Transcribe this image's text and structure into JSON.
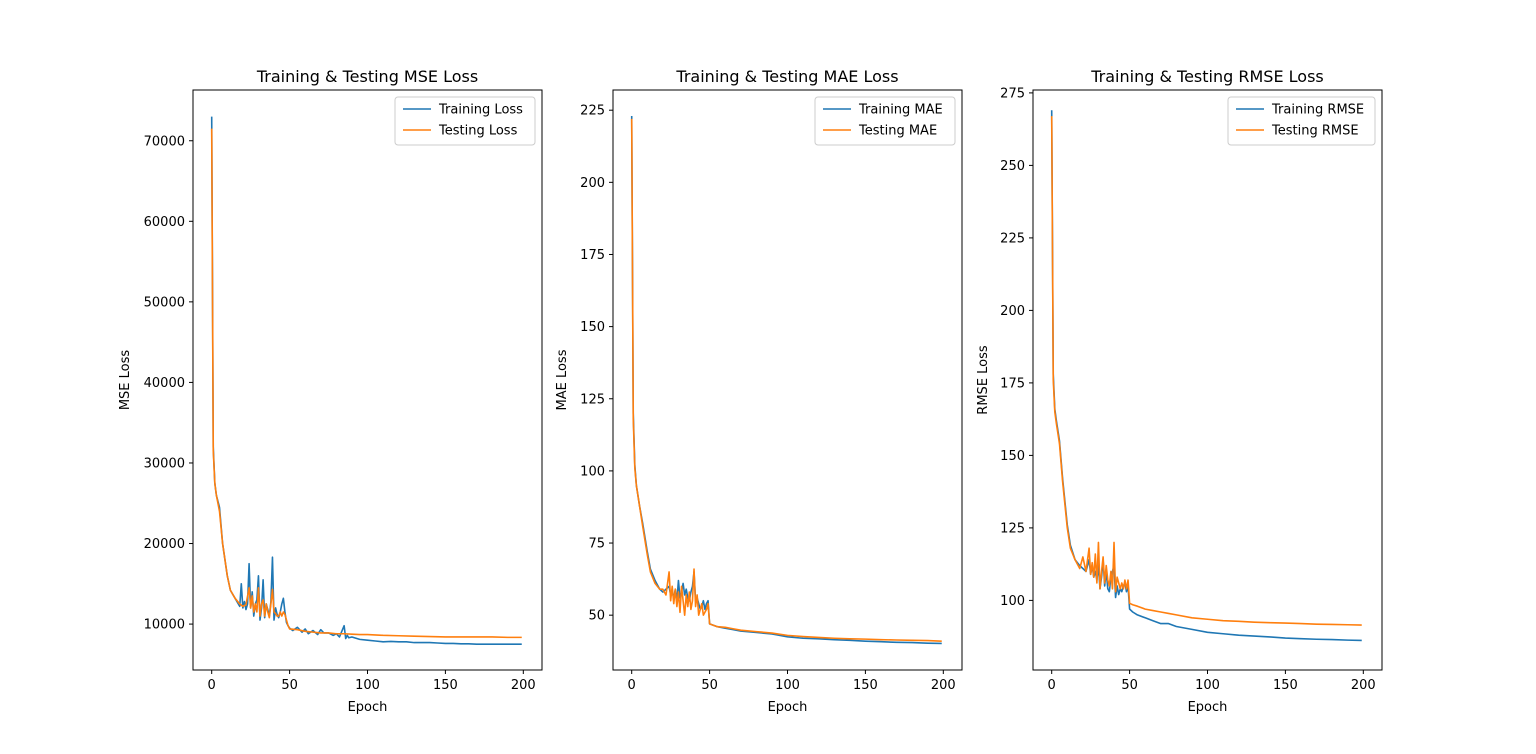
{
  "chart_data": [
    {
      "type": "line",
      "title": "Training & Testing MSE Loss",
      "xlabel": "Epoch",
      "ylabel": "MSE Loss",
      "xlim": [
        -12,
        212
      ],
      "ylim": [
        4300,
        76300
      ],
      "xticks": [
        0,
        50,
        100,
        150,
        200
      ],
      "yticks": [
        10000,
        20000,
        30000,
        40000,
        50000,
        60000,
        70000
      ],
      "legend": "top-right",
      "grid": false,
      "series": [
        {
          "name": "Training Loss",
          "color": "#1f77b4",
          "x": [
            0,
            1,
            2,
            3,
            5,
            7,
            10,
            12,
            15,
            18,
            19,
            20,
            21,
            22,
            23,
            24,
            25,
            26,
            27,
            28,
            29,
            30,
            31,
            32,
            33,
            34,
            35,
            36,
            37,
            38,
            39,
            40,
            41,
            42,
            43,
            44,
            45,
            46,
            47,
            48,
            49,
            50,
            52,
            55,
            58,
            60,
            62,
            65,
            68,
            70,
            72,
            75,
            78,
            80,
            82,
            85,
            86,
            87,
            88,
            90,
            95,
            100,
            105,
            110,
            115,
            120,
            125,
            130,
            135,
            140,
            145,
            150,
            155,
            160,
            165,
            170,
            175,
            180,
            185,
            190,
            195,
            199
          ],
          "y": [
            73000,
            32000,
            27500,
            26000,
            24500,
            20000,
            16000,
            14200,
            13200,
            12200,
            15000,
            12000,
            12800,
            11800,
            12500,
            17500,
            12000,
            14000,
            11000,
            12500,
            13000,
            16000,
            10500,
            12000,
            15500,
            10800,
            12500,
            11800,
            11000,
            12800,
            18300,
            10500,
            12000,
            11200,
            10800,
            11500,
            12500,
            13200,
            11500,
            10200,
            9800,
            9500,
            9200,
            9600,
            9000,
            9400,
            8800,
            9200,
            8700,
            9300,
            8900,
            8900,
            8600,
            8800,
            8400,
            9800,
            8200,
            8600,
            8300,
            8400,
            8100,
            8000,
            7900,
            7800,
            7850,
            7800,
            7800,
            7700,
            7700,
            7700,
            7650,
            7600,
            7600,
            7550,
            7550,
            7500,
            7500,
            7500,
            7500,
            7500,
            7500,
            7500
          ]
        },
        {
          "name": "Testing Loss",
          "color": "#ff7f0e",
          "x": [
            0,
            1,
            2,
            3,
            5,
            7,
            10,
            12,
            15,
            18,
            20,
            22,
            24,
            25,
            26,
            27,
            28,
            29,
            30,
            31,
            32,
            33,
            34,
            35,
            36,
            37,
            38,
            39,
            40,
            41,
            42,
            43,
            44,
            45,
            46,
            47,
            48,
            49,
            50,
            55,
            60,
            65,
            70,
            75,
            80,
            85,
            90,
            95,
            100,
            110,
            120,
            130,
            140,
            150,
            160,
            170,
            180,
            190,
            199
          ],
          "y": [
            71500,
            31500,
            27500,
            26000,
            24000,
            20000,
            16000,
            14200,
            13200,
            12500,
            12200,
            12400,
            14500,
            12000,
            13500,
            11500,
            12500,
            11500,
            14500,
            11000,
            12500,
            13000,
            11000,
            12500,
            11500,
            10800,
            12500,
            14300,
            11500,
            11300,
            11000,
            11000,
            11500,
            11000,
            11500,
            11200,
            10500,
            9800,
            9400,
            9300,
            9100,
            9000,
            8900,
            8900,
            8800,
            8800,
            8750,
            8700,
            8700,
            8600,
            8550,
            8500,
            8450,
            8400,
            8400,
            8400,
            8400,
            8350,
            8350
          ]
        }
      ]
    },
    {
      "type": "line",
      "title": "Training & Testing MAE Loss",
      "xlabel": "Epoch",
      "ylabel": "MAE Loss",
      "xlim": [
        -12,
        212
      ],
      "ylim": [
        31,
        232
      ],
      "xticks": [
        0,
        50,
        100,
        150,
        200
      ],
      "yticks": [
        50,
        75,
        100,
        125,
        150,
        175,
        200,
        225
      ],
      "legend": "top-right",
      "grid": false,
      "series": [
        {
          "name": "Training MAE",
          "color": "#1f77b4",
          "x": [
            0,
            1,
            2,
            3,
            5,
            7,
            10,
            12,
            15,
            18,
            20,
            22,
            24,
            25,
            26,
            27,
            28,
            29,
            30,
            31,
            32,
            33,
            34,
            35,
            36,
            37,
            38,
            39,
            40,
            41,
            42,
            43,
            44,
            45,
            46,
            47,
            48,
            49,
            50,
            55,
            60,
            65,
            70,
            80,
            90,
            100,
            110,
            120,
            130,
            140,
            150,
            160,
            170,
            180,
            190,
            199
          ],
          "y": [
            223,
            120,
            102,
            95,
            88,
            82,
            72,
            66,
            62,
            59,
            58,
            59,
            60,
            57,
            58,
            56,
            59,
            55,
            62,
            56,
            58,
            61,
            57,
            59,
            56,
            55,
            58,
            60,
            65,
            55,
            56,
            54,
            52,
            53,
            55,
            52,
            54,
            55,
            47,
            46,
            45.5,
            45,
            44.5,
            44,
            43.5,
            42.5,
            42,
            41.8,
            41.5,
            41.3,
            41,
            40.8,
            40.6,
            40.5,
            40.3,
            40.2
          ]
        },
        {
          "name": "Testing MAE",
          "color": "#ff7f0e",
          "x": [
            0,
            1,
            2,
            3,
            5,
            7,
            10,
            12,
            15,
            18,
            20,
            22,
            24,
            25,
            26,
            27,
            28,
            29,
            30,
            31,
            32,
            33,
            34,
            35,
            36,
            37,
            38,
            39,
            40,
            41,
            42,
            43,
            44,
            45,
            46,
            47,
            48,
            49,
            50,
            55,
            60,
            65,
            70,
            80,
            90,
            100,
            110,
            120,
            130,
            140,
            150,
            160,
            170,
            180,
            190,
            199
          ],
          "y": [
            222,
            118,
            101,
            95,
            88,
            81,
            71,
            65,
            61,
            59,
            59,
            57,
            65,
            55,
            60,
            54,
            59,
            53,
            58,
            51,
            60,
            55,
            50,
            57,
            53,
            58,
            52,
            55,
            66,
            53,
            57,
            50,
            52,
            54,
            50,
            51,
            52,
            54,
            47,
            46,
            45.8,
            45.3,
            44.8,
            44.3,
            43.8,
            43,
            42.6,
            42.3,
            42,
            41.8,
            41.7,
            41.5,
            41.4,
            41.3,
            41.2,
            41
          ]
        }
      ]
    },
    {
      "type": "line",
      "title": "Training & Testing RMSE Loss",
      "xlabel": "Epoch",
      "ylabel": "RMSE Loss",
      "xlim": [
        -12,
        212
      ],
      "ylim": [
        76,
        276
      ],
      "xticks": [
        0,
        50,
        100,
        150,
        200
      ],
      "yticks": [
        100,
        125,
        150,
        175,
        200,
        225,
        250,
        275
      ],
      "legend": "top-right",
      "grid": false,
      "series": [
        {
          "name": "Training RMSE",
          "color": "#1f77b4",
          "x": [
            0,
            1,
            2,
            3,
            5,
            7,
            10,
            12,
            15,
            18,
            20,
            22,
            24,
            25,
            26,
            27,
            28,
            29,
            30,
            31,
            32,
            33,
            34,
            35,
            36,
            37,
            38,
            39,
            40,
            41,
            42,
            43,
            44,
            45,
            46,
            47,
            48,
            49,
            50,
            52,
            55,
            60,
            65,
            70,
            75,
            80,
            90,
            100,
            110,
            120,
            130,
            140,
            150,
            160,
            170,
            180,
            190,
            199
          ],
          "y": [
            269,
            178,
            166,
            162,
            155,
            142,
            126,
            119,
            114,
            112,
            111,
            110,
            114,
            109,
            112,
            108,
            110,
            107,
            112,
            104,
            108,
            114,
            105,
            110,
            104,
            103,
            108,
            110,
            112,
            101,
            105,
            102,
            104,
            103,
            105,
            106,
            103,
            105,
            97,
            96,
            95,
            94,
            93,
            92,
            92,
            91,
            90,
            89,
            88.5,
            88,
            87.7,
            87.4,
            87,
            86.8,
            86.6,
            86.5,
            86.3,
            86.2
          ]
        },
        {
          "name": "Testing RMSE",
          "color": "#ff7f0e",
          "x": [
            0,
            1,
            2,
            3,
            5,
            7,
            10,
            12,
            15,
            18,
            20,
            22,
            24,
            25,
            26,
            27,
            28,
            29,
            30,
            31,
            32,
            33,
            34,
            35,
            36,
            37,
            38,
            39,
            40,
            41,
            42,
            43,
            44,
            45,
            46,
            47,
            48,
            49,
            50,
            52,
            55,
            60,
            65,
            70,
            75,
            80,
            90,
            100,
            110,
            120,
            130,
            140,
            150,
            160,
            170,
            180,
            190,
            199
          ],
          "y": [
            267,
            176,
            165,
            161,
            154,
            141,
            125,
            118,
            114,
            111,
            115,
            110,
            118,
            109,
            113,
            108,
            116,
            106,
            120,
            104,
            110,
            115,
            106,
            112,
            107,
            105,
            110,
            104,
            120,
            103,
            108,
            106,
            104,
            106,
            104,
            107,
            104,
            107,
            99,
            98.5,
            98,
            97,
            96.5,
            96,
            95.5,
            95,
            94,
            93.5,
            93,
            92.8,
            92.5,
            92.3,
            92.2,
            92,
            91.8,
            91.7,
            91.6,
            91.5
          ]
        }
      ]
    }
  ]
}
